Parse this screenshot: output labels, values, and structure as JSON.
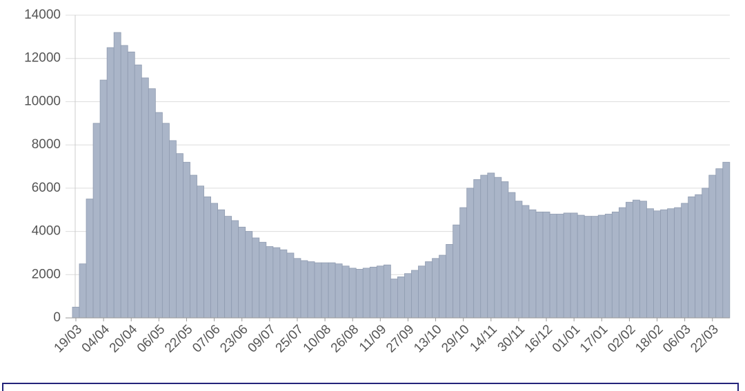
{
  "chart_data": {
    "type": "bar",
    "categories": [
      "19/03",
      null,
      null,
      null,
      "04/04",
      null,
      null,
      null,
      "20/04",
      null,
      null,
      null,
      "06/05",
      null,
      null,
      null,
      "22/05",
      null,
      null,
      null,
      "07/06",
      null,
      null,
      null,
      "23/06",
      null,
      null,
      null,
      "09/07",
      null,
      null,
      null,
      "25/07",
      null,
      null,
      null,
      "10/08",
      null,
      null,
      null,
      "26/08",
      null,
      null,
      null,
      "11/09",
      null,
      null,
      null,
      "27/09",
      null,
      null,
      null,
      "13/10",
      null,
      null,
      null,
      "29/10",
      null,
      null,
      null,
      "14/11",
      null,
      null,
      null,
      "30/11",
      null,
      null,
      null,
      "16/12",
      null,
      null,
      null,
      "01/01",
      null,
      null,
      null,
      "17/01",
      null,
      null,
      null,
      "02/02",
      null,
      null,
      null,
      "18/02",
      null,
      null,
      null,
      "06/03",
      null,
      null,
      null,
      "22/03",
      null,
      null
    ],
    "values": [
      500,
      2500,
      5500,
      9000,
      11000,
      12500,
      13200,
      12600,
      12300,
      11700,
      11100,
      10600,
      9500,
      9000,
      8200,
      7600,
      7200,
      6600,
      6100,
      5600,
      5300,
      5000,
      4700,
      4500,
      4200,
      4000,
      3700,
      3500,
      3300,
      3250,
      3150,
      3000,
      2750,
      2650,
      2600,
      2550,
      2550,
      2550,
      2500,
      2400,
      2300,
      2250,
      2300,
      2350,
      2400,
      2450,
      1800,
      1900,
      2050,
      2200,
      2400,
      2600,
      2750,
      2900,
      3400,
      4300,
      5100,
      6000,
      6400,
      6600,
      6700,
      6500,
      6300,
      5800,
      5400,
      5200,
      5000,
      4900,
      4900,
      4800,
      4800,
      4850,
      4850,
      4750,
      4700,
      4700,
      4750,
      4800,
      4900,
      5100,
      5350,
      5450,
      5400,
      5050,
      4950,
      5000,
      5050,
      5100,
      5300,
      5600,
      5700,
      6000,
      6600,
      6900,
      7200
    ],
    "color": "#aab5c8",
    "ylim": [
      0,
      14000
    ],
    "yticks": [
      0,
      2000,
      4000,
      6000,
      8000,
      10000,
      12000,
      14000
    ],
    "grid": true
  }
}
